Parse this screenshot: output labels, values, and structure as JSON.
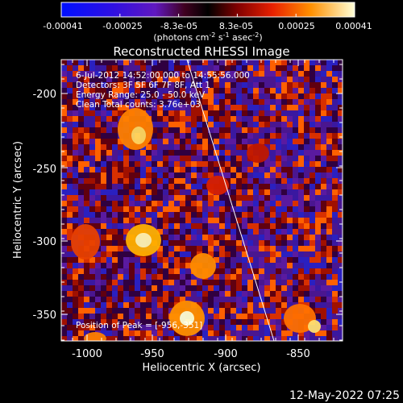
{
  "colorbar": {
    "ticks": [
      "-0.00041",
      "-0.00025",
      "-8.3e-05",
      "8.3e-05",
      "0.00025",
      "0.00041"
    ],
    "unit_main": "(photons cm",
    "unit_exp1": "-2",
    "unit_mid1": " s",
    "unit_exp2": "-1",
    "unit_mid2": " asec",
    "unit_exp3": "-2",
    "unit_end": ")"
  },
  "plot": {
    "title": "Reconstructed RHESSI Image",
    "xlabel": "Heliocentric X (arcsec)",
    "ylabel": "Heliocentric Y (arcsec)",
    "x_ticks": [
      "-1000",
      "-950",
      "-900",
      "-850"
    ],
    "y_ticks": [
      "-200",
      "-250",
      "-300",
      "-350"
    ],
    "x_range": [
      -1012,
      -822
    ],
    "y_range": [
      -372,
      -178
    ],
    "annotations": [
      "6-Jul-2012 14:52:00.000 to 14:55:56.000",
      "Detectors: 3F 5F 6F 7F 8F, Att 1",
      "Energy Range: 25.0 - 50.0 keV",
      "Clean     Total counts: 3.76e+03"
    ],
    "peak_label": "Position of Peak = [-956,-351]"
  },
  "footer": {
    "timestamp": "12-May-2022 07:25"
  },
  "colors": {
    "background": "#000000",
    "limb_line": "#ffffff",
    "low": "#1a2cff",
    "mid": "#5a1aa0",
    "high": "#ffffc0"
  }
}
